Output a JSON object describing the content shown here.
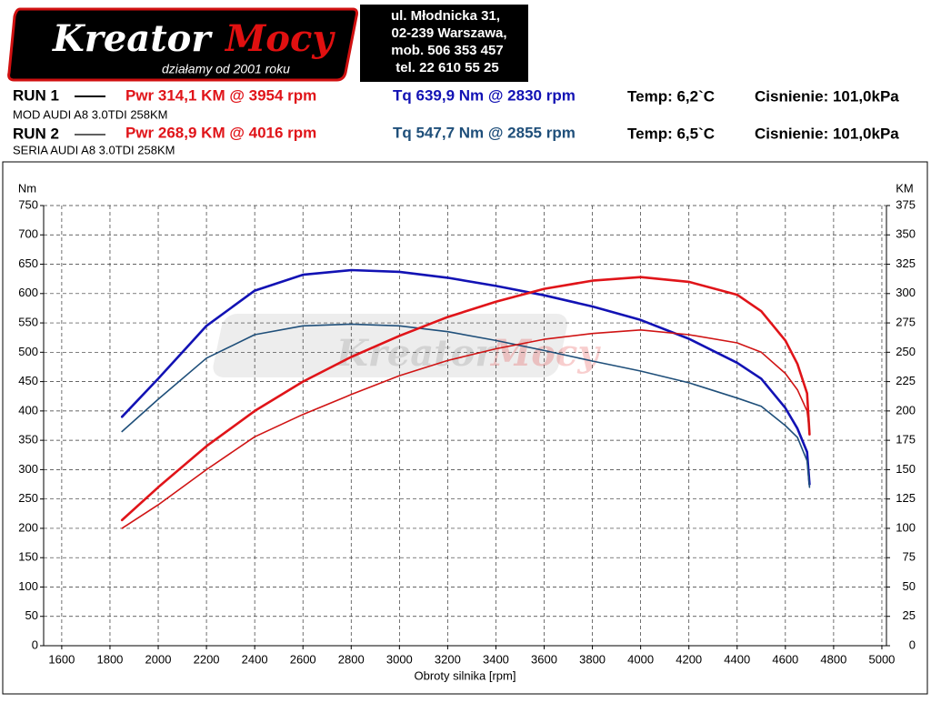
{
  "header": {
    "logo": {
      "part_a": "Kreator",
      "part_b": "Mocy",
      "slogan": "działamy od 2001 roku"
    },
    "address": [
      "ul. Młodnicka 31,",
      "02-239  Warszawa,",
      "mob.  506 353 457",
      "tel.  22 610 55 25"
    ]
  },
  "runs": [
    {
      "label": "RUN 1",
      "power": "Pwr  314,1 KM @ 3954 rpm",
      "torque": "Tq 639,9 Nm @ 2830 rpm",
      "temp": "Temp: 6,2`C",
      "pressure": "Cisnienie: 101,0kPa",
      "description": "MOD AUDI A8 3.0TDI 258KM"
    },
    {
      "label": "RUN 2",
      "power": "Pwr  268,9 KM @ 4016 rpm",
      "torque": "Tq 547,7 Nm @ 2855 rpm",
      "temp": "Temp: 6,5`C",
      "pressure": "Cisnienie: 101,0kPa",
      "description": "SERIA AUDI A8 3.0TDI 258KM"
    }
  ],
  "chart_data": {
    "type": "line",
    "y_label": "Nm",
    "y2_label": "KM",
    "x_label": "Obroty silnika [rpm]",
    "x": [
      1850,
      2000,
      2200,
      2400,
      2600,
      2800,
      3000,
      3200,
      3400,
      3600,
      3800,
      4000,
      4200,
      4400,
      4500,
      4600,
      4650,
      4690,
      4700
    ],
    "xlim": [
      1525,
      5019
    ],
    "xticks": [
      1600,
      1800,
      2000,
      2200,
      2400,
      2600,
      2800,
      3000,
      3200,
      3400,
      3600,
      3800,
      4000,
      4200,
      4400,
      4600,
      4800,
      5000
    ],
    "ylim": [
      0,
      750
    ],
    "yticks": [
      0,
      50,
      100,
      150,
      200,
      250,
      300,
      350,
      400,
      450,
      500,
      550,
      600,
      650,
      700,
      750
    ],
    "y2lim": [
      0,
      375
    ],
    "y2ticks": [
      0,
      25,
      50,
      75,
      100,
      125,
      150,
      175,
      200,
      225,
      250,
      275,
      300,
      325,
      350,
      375
    ],
    "grid": true,
    "series": [
      {
        "color": "#1212b4",
        "width": 2.6,
        "values": [
          390,
          455,
          545,
          605,
          632,
          640,
          637,
          627,
          613,
          597,
          578,
          555,
          523,
          482,
          455,
          405,
          370,
          330,
          275
        ]
      },
      {
        "color": "#1f4f7a",
        "width": 1.6,
        "values": [
          365,
          420,
          490,
          530,
          545,
          548,
          545,
          535,
          520,
          503,
          485,
          468,
          448,
          422,
          408,
          375,
          355,
          315,
          270
        ]
      },
      {
        "color": "#e01419",
        "width": 2.6,
        "axis": "y2",
        "values": [
          107,
          135,
          170,
          200,
          225,
          246,
          264,
          280,
          293,
          304,
          311,
          314,
          310,
          299,
          285,
          260,
          240,
          215,
          180
        ]
      },
      {
        "color": "#d01414",
        "width": 1.6,
        "axis": "y2",
        "values": [
          100,
          120,
          150,
          178,
          197,
          214,
          230,
          243,
          253,
          261,
          266,
          269,
          265,
          258,
          250,
          232,
          218,
          200,
          183
        ]
      }
    ]
  }
}
